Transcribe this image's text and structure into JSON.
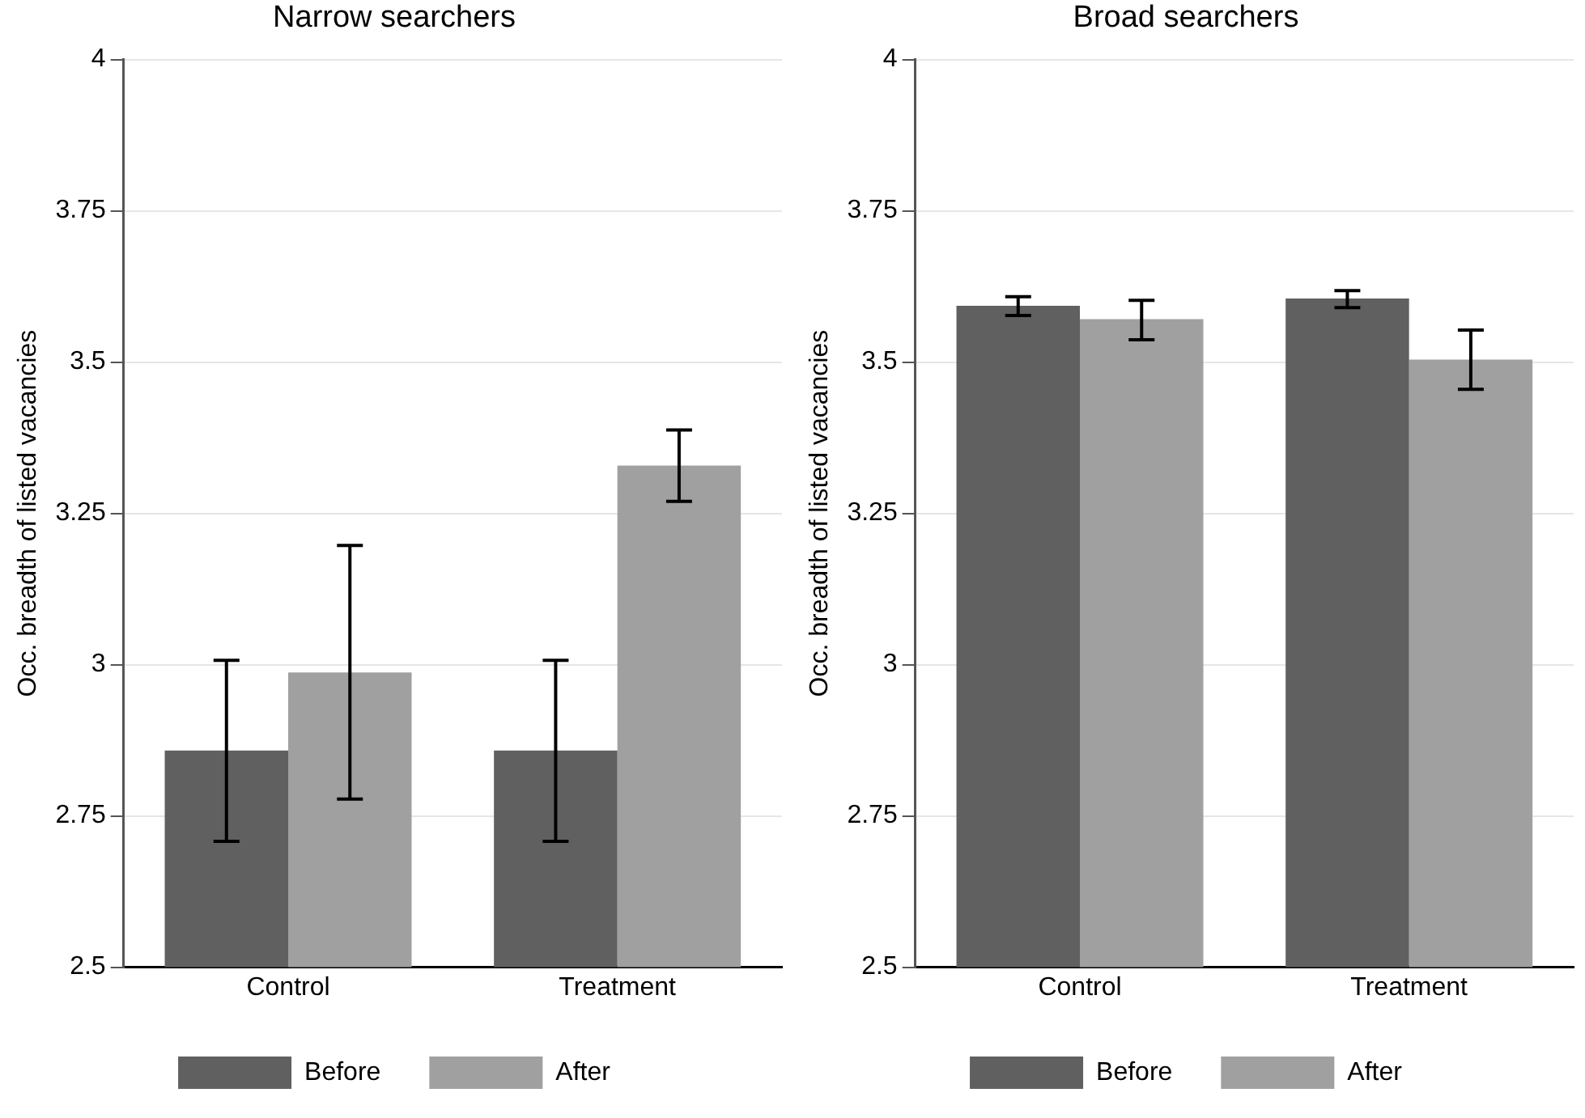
{
  "chart_data": [
    {
      "type": "bar",
      "title": "Narrow searchers",
      "ylabel": "Occ. breadth of listed vacancies",
      "categories": [
        "Control",
        "Treatment"
      ],
      "ylim": [
        2.5,
        4
      ],
      "yticks": [
        2.5,
        2.75,
        3,
        3.25,
        3.5,
        3.75,
        4
      ],
      "grid": "y",
      "legend": "bottom",
      "series": [
        {
          "name": "Before",
          "color": "#606060",
          "values": [
            2.858,
            2.858
          ],
          "errors": [
            [
              2.708,
              3.007
            ],
            [
              2.708,
              3.007
            ]
          ]
        },
        {
          "name": "After",
          "color": "#a0a0a0",
          "values": [
            2.987,
            3.329
          ],
          "errors": [
            [
              2.778,
              3.197
            ],
            [
              3.27,
              3.388
            ]
          ]
        }
      ]
    },
    {
      "type": "bar",
      "title": "Broad searchers",
      "ylabel": "Occ. breadth of listed vacancies",
      "categories": [
        "Control",
        "Treatment"
      ],
      "ylim": [
        2.5,
        4
      ],
      "yticks": [
        2.5,
        2.75,
        3,
        3.25,
        3.5,
        3.75,
        4
      ],
      "grid": "y",
      "legend": "bottom",
      "series": [
        {
          "name": "Before",
          "color": "#606060",
          "values": [
            3.593,
            3.605
          ],
          "errors": [
            [
              3.577,
              3.608
            ],
            [
              3.59,
              3.618
            ]
          ]
        },
        {
          "name": "After",
          "color": "#a0a0a0",
          "values": [
            3.571,
            3.504
          ],
          "errors": [
            [
              3.537,
              3.602
            ],
            [
              3.455,
              3.553
            ]
          ]
        }
      ]
    }
  ]
}
